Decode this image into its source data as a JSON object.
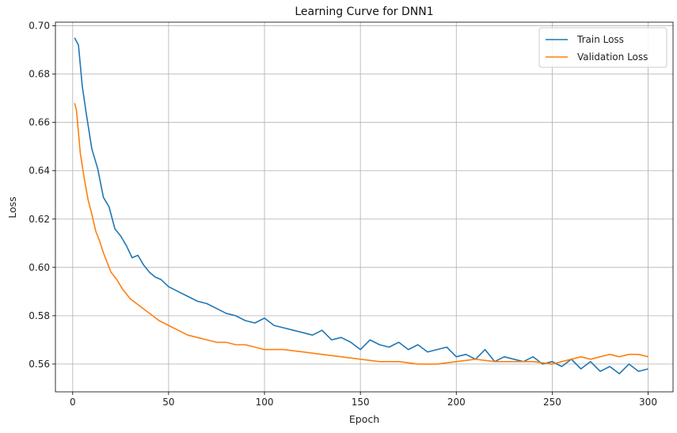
{
  "chart_data": {
    "type": "line",
    "title": "Learning Curve for DNN1",
    "xlabel": "Epoch",
    "ylabel": "Loss",
    "xlim": [
      -9,
      313
    ],
    "ylim": [
      0.5485,
      0.7015
    ],
    "xticks": [
      0,
      50,
      100,
      150,
      200,
      250,
      300
    ],
    "yticks": [
      0.56,
      0.58,
      0.6,
      0.62,
      0.64,
      0.66,
      0.68,
      0.7
    ],
    "ytick_labels": [
      "0.56",
      "0.58",
      "0.60",
      "0.62",
      "0.64",
      "0.66",
      "0.68",
      "0.70"
    ],
    "grid": true,
    "legend": "top-right",
    "series": [
      {
        "name": "Train Loss",
        "color": "#1f77b4",
        "x": [
          1,
          3,
          5,
          7,
          10,
          13,
          16,
          19,
          22,
          25,
          28,
          31,
          34,
          37,
          40,
          43,
          46,
          50,
          55,
          60,
          65,
          70,
          75,
          80,
          85,
          90,
          95,
          100,
          105,
          110,
          115,
          120,
          125,
          130,
          135,
          140,
          145,
          150,
          155,
          160,
          165,
          170,
          175,
          180,
          185,
          190,
          195,
          200,
          205,
          210,
          215,
          220,
          225,
          230,
          235,
          240,
          245,
          250,
          255,
          260,
          265,
          270,
          275,
          280,
          285,
          290,
          295,
          300
        ],
        "values": [
          0.695,
          0.692,
          0.675,
          0.664,
          0.649,
          0.641,
          0.629,
          0.625,
          0.616,
          0.613,
          0.609,
          0.604,
          0.605,
          0.601,
          0.598,
          0.596,
          0.595,
          0.592,
          0.59,
          0.588,
          0.586,
          0.585,
          0.583,
          0.581,
          0.58,
          0.578,
          0.577,
          0.579,
          0.576,
          0.575,
          0.574,
          0.573,
          0.572,
          0.574,
          0.57,
          0.571,
          0.569,
          0.566,
          0.57,
          0.568,
          0.567,
          0.569,
          0.566,
          0.568,
          0.565,
          0.566,
          0.567,
          0.563,
          0.564,
          0.562,
          0.566,
          0.561,
          0.563,
          0.562,
          0.561,
          0.563,
          0.56,
          0.561,
          0.559,
          0.562,
          0.558,
          0.561,
          0.557,
          0.559,
          0.556,
          0.56,
          0.557,
          0.558
        ]
      },
      {
        "name": "Validation Loss",
        "color": "#ff7f0e",
        "x": [
          1,
          2,
          4,
          6,
          8,
          10,
          12,
          14,
          16,
          18,
          20,
          23,
          26,
          30,
          35,
          40,
          45,
          50,
          55,
          60,
          65,
          70,
          75,
          80,
          85,
          90,
          95,
          100,
          110,
          120,
          130,
          140,
          150,
          160,
          170,
          180,
          190,
          200,
          210,
          220,
          230,
          240,
          250,
          255,
          260,
          265,
          270,
          275,
          280,
          285,
          290,
          295,
          300
        ],
        "values": [
          0.668,
          0.665,
          0.647,
          0.637,
          0.628,
          0.622,
          0.615,
          0.611,
          0.606,
          0.602,
          0.598,
          0.595,
          0.591,
          0.587,
          0.584,
          0.581,
          0.578,
          0.576,
          0.574,
          0.572,
          0.571,
          0.57,
          0.569,
          0.569,
          0.568,
          0.568,
          0.567,
          0.566,
          0.566,
          0.565,
          0.564,
          0.563,
          0.562,
          0.561,
          0.561,
          0.56,
          0.56,
          0.561,
          0.562,
          0.561,
          0.561,
          0.561,
          0.56,
          0.561,
          0.562,
          0.563,
          0.562,
          0.563,
          0.564,
          0.563,
          0.564,
          0.564,
          0.563
        ]
      }
    ]
  }
}
